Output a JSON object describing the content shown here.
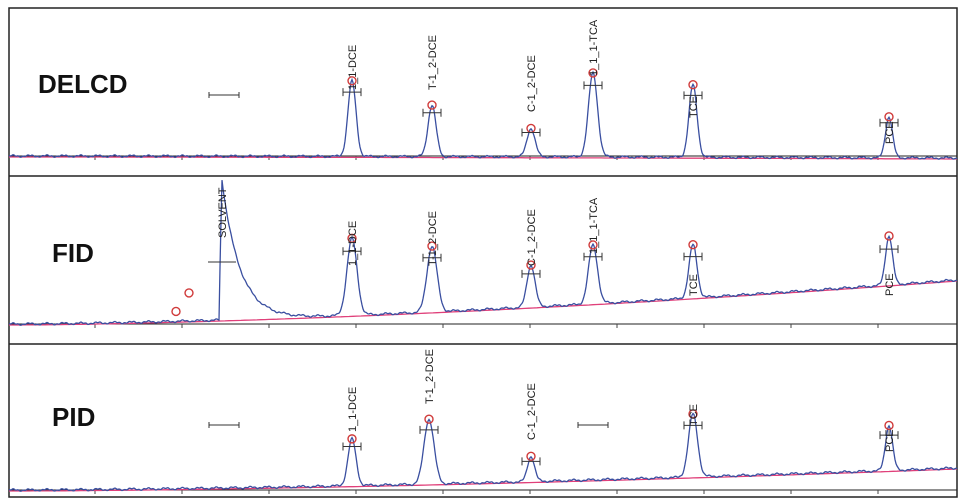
{
  "chart_data": [
    {
      "type": "line",
      "panel": "DELCD",
      "series": [
        {
          "color": "#3a4fa0"
        },
        {
          "color": "#e0407a"
        }
      ],
      "peaks": [
        {
          "label": "1_1-DCE",
          "height": 0.72
        },
        {
          "label": "T-1_2-DCE",
          "height": 0.49
        },
        {
          "label": "C-1_2-DCE",
          "height": 0.27
        },
        {
          "label": "1_1_1-TCA",
          "height": 0.8
        },
        {
          "label": "TCE",
          "height": 0.69
        },
        {
          "label": "PCE",
          "height": 0.39
        }
      ]
    },
    {
      "type": "line",
      "panel": "FID",
      "series": [
        {
          "color": "#3a4fa0"
        },
        {
          "color": "#e0407a"
        }
      ],
      "peaks": [
        {
          "label": "SOLVENT",
          "height": 1.0
        },
        {
          "label": "1_1-DCE",
          "height": 0.55
        },
        {
          "label": "T-1_2-DCE",
          "height": 0.47
        },
        {
          "label": "C-1_2-DCE",
          "height": 0.3
        },
        {
          "label": "1_1_1-TCA",
          "height": 0.42
        },
        {
          "label": "TCE",
          "height": 0.38
        },
        {
          "label": "PCE",
          "height": 0.35
        }
      ]
    },
    {
      "type": "line",
      "panel": "PID",
      "series": [
        {
          "color": "#3a4fa0"
        },
        {
          "color": "#e0407a"
        }
      ],
      "peaks": [
        {
          "label": "1_1-DCE",
          "height": 0.52
        },
        {
          "label": "T-1_2-DCE",
          "height": 0.72
        },
        {
          "label": "C-1_2-DCE",
          "height": 0.28
        },
        {
          "label": "TCE",
          "height": 0.7
        },
        {
          "label": "PCE",
          "height": 0.5
        }
      ]
    }
  ]
}
